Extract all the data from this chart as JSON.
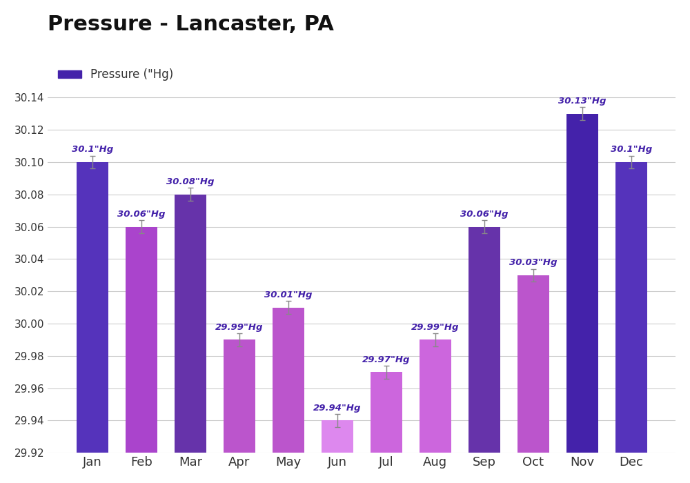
{
  "title": "Pressure - Lancaster, PA",
  "legend_label": "Pressure (\"Hg)",
  "months": [
    "Jan",
    "Feb",
    "Mar",
    "Apr",
    "May",
    "Jun",
    "Jul",
    "Aug",
    "Sep",
    "Oct",
    "Nov",
    "Dec"
  ],
  "values": [
    30.1,
    30.06,
    30.08,
    29.99,
    30.01,
    29.94,
    29.97,
    29.99,
    30.06,
    30.03,
    30.13,
    30.1
  ],
  "bar_colors": [
    "#5533bb",
    "#aa44cc",
    "#6633aa",
    "#bb55cc",
    "#bb55cc",
    "#dd88ee",
    "#cc66dd",
    "#cc66dd",
    "#6633aa",
    "#bb55cc",
    "#4422aa",
    "#5533bb"
  ],
  "error_bars": [
    0.004,
    0.004,
    0.004,
    0.004,
    0.004,
    0.004,
    0.004,
    0.004,
    0.004,
    0.004,
    0.004,
    0.004
  ],
  "labels": [
    "30.1\"Hg",
    "30.06\"Hg",
    "30.08\"Hg",
    "29.99\"Hg",
    "30.01\"Hg",
    "29.94\"Hg",
    "29.97\"Hg",
    "29.99\"Hg",
    "30.06\"Hg",
    "30.03\"Hg",
    "30.13\"Hg",
    "30.1\"Hg"
  ],
  "ylim_min": 29.92,
  "ylim_max": 30.155,
  "bar_bottom": 29.92,
  "yticks": [
    29.92,
    29.94,
    29.96,
    29.98,
    30.0,
    30.02,
    30.04,
    30.06,
    30.08,
    30.1,
    30.12,
    30.14
  ],
  "title_fontsize": 22,
  "legend_color": "#4422aa",
  "label_color": "#4422aa",
  "tick_label_color": "#333333",
  "background_color": "#ffffff",
  "grid_color": "#cccccc"
}
